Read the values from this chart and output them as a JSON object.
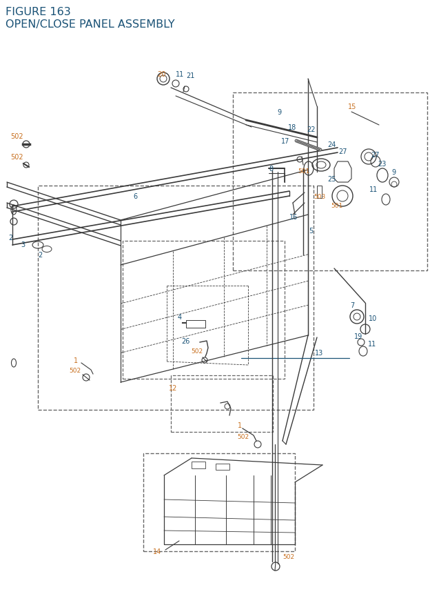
{
  "title_line1": "FIGURE 163",
  "title_line2": "OPEN/CLOSE PANEL ASSEMBLY",
  "title_color": "#1a5276",
  "title_fontsize": 11.5,
  "bg_color": "#ffffff",
  "oc": "#c87020",
  "bc": "#1a5276",
  "lc": "#3a3a3a",
  "dc": "#666666",
  "fs": 7.0
}
